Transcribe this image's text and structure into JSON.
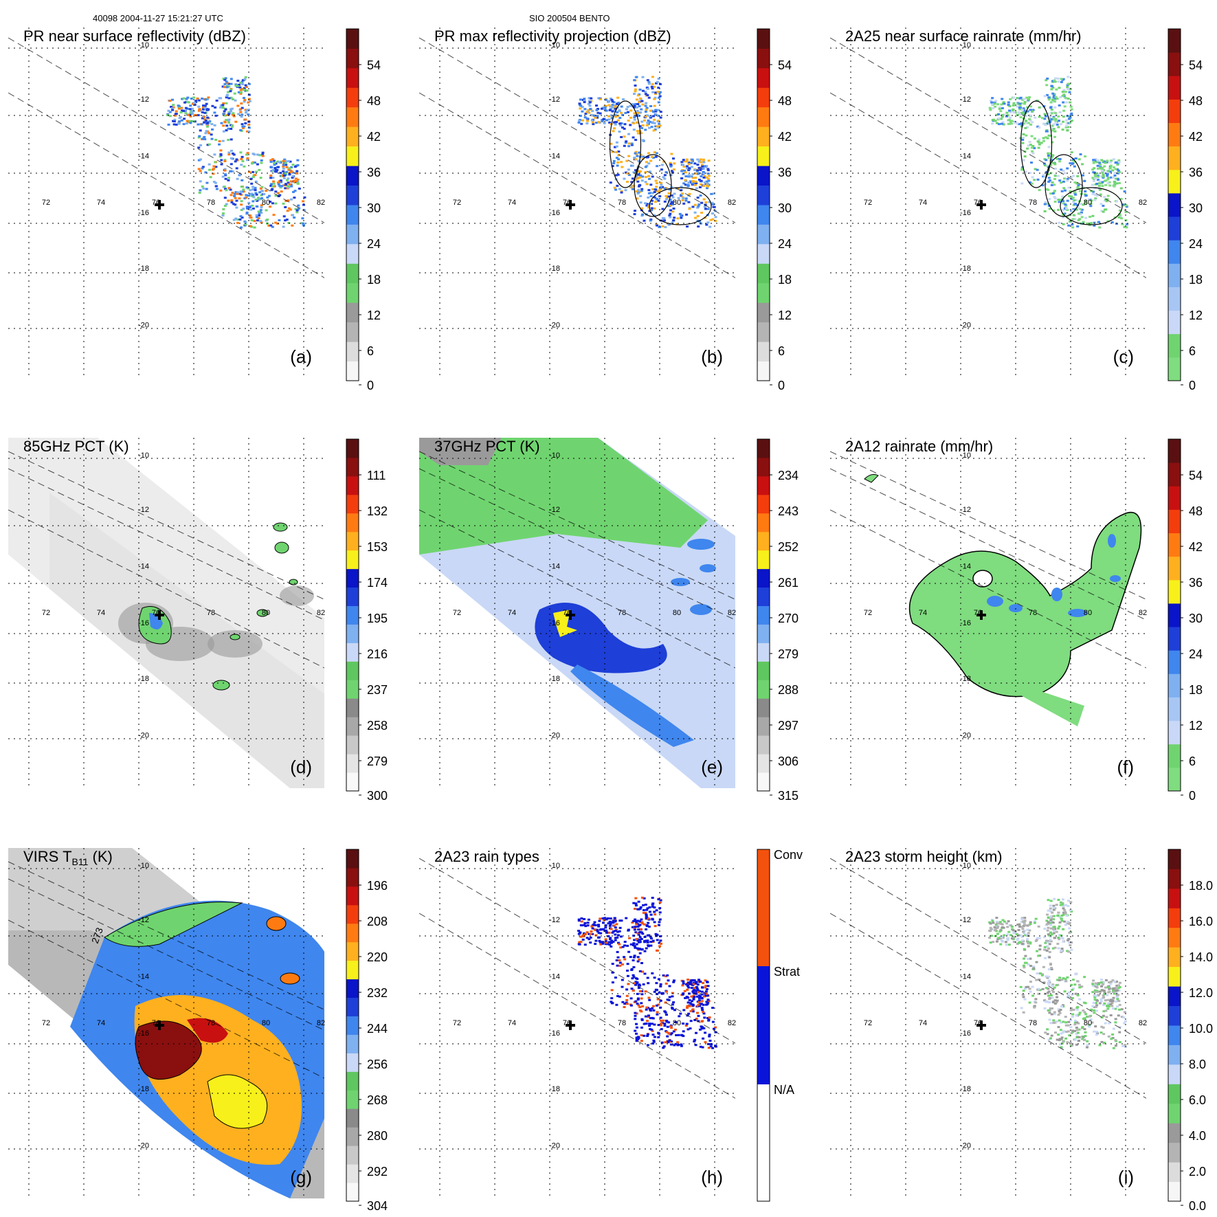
{
  "header": {
    "left": "40098 2004-11-27 15:21:27 UTC",
    "center": "SIO 200504 BENTO"
  },
  "chart_data": {
    "type": "map-grid",
    "lon_ticks": [
      "72",
      "74",
      "76",
      "78",
      "80",
      "82"
    ],
    "lat_ticks": [
      "-10",
      "-12",
      "-14",
      "-16",
      "-18",
      "-20"
    ],
    "center_marker": "cross",
    "panels": [
      {
        "id": "a",
        "title": "PR near surface reflectivity (dBZ)",
        "label": "(a)",
        "type": "reflectivity_swath",
        "colorbar": {
          "ticks": [
            "54",
            "48",
            "42",
            "36",
            "30",
            "24",
            "18",
            "12",
            "6",
            "0"
          ],
          "range": [
            0,
            60
          ],
          "colors": [
            "#f6f6f6",
            "#dcdcdc",
            "#b4b4b4",
            "#9a9a9a",
            "#6fd46f",
            "#5fc75f",
            "#c9d8f6",
            "#7fb0f0",
            "#3f86ee",
            "#1e3fd8",
            "#0a14c8",
            "#f7f01a",
            "#ffb01e",
            "#ff7b12",
            "#f43d0c",
            "#c81010",
            "#8a0f0f",
            "#5a1010"
          ]
        }
      },
      {
        "id": "b",
        "title": "PR max reflectivity projection (dBZ)",
        "label": "(b)",
        "type": "reflectivity_swath_outlined",
        "colorbar": {
          "ticks": [
            "54",
            "48",
            "42",
            "36",
            "30",
            "24",
            "18",
            "12",
            "6",
            "0"
          ],
          "range": [
            0,
            60
          ],
          "colors": [
            "#f6f6f6",
            "#dcdcdc",
            "#b4b4b4",
            "#9a9a9a",
            "#6fd46f",
            "#5fc75f",
            "#c9d8f6",
            "#7fb0f0",
            "#3f86ee",
            "#1e3fd8",
            "#0a14c8",
            "#f7f01a",
            "#ffb01e",
            "#ff7b12",
            "#f43d0c",
            "#c81010",
            "#8a0f0f",
            "#5a1010"
          ]
        }
      },
      {
        "id": "c",
        "title": "2A25 near surface rainrate (mm/hr)",
        "label": "(c)",
        "type": "rainrate_swath",
        "colorbar": {
          "ticks": [
            "54",
            "48",
            "42",
            "36",
            "30",
            "24",
            "18",
            "12",
            "6",
            "0"
          ],
          "range": [
            0,
            60
          ],
          "colors": [
            "#7fdc7f",
            "#6fd46f",
            "#c9d8f6",
            "#a8c6f4",
            "#7fb0f0",
            "#3f86ee",
            "#1e3fd8",
            "#0a14c8",
            "#f7f01a",
            "#ffb01e",
            "#ff7b12",
            "#f43d0c",
            "#c81010",
            "#8a0f0f",
            "#5a1010"
          ]
        }
      },
      {
        "id": "d",
        "title": "85GHz PCT (K)",
        "label": "(d)",
        "type": "tb_gray",
        "colorbar": {
          "ticks": [
            "111",
            "132",
            "153",
            "174",
            "195",
            "216",
            "237",
            "258",
            "279",
            "300"
          ],
          "range": [
            90,
            300
          ],
          "colors": [
            "#f8f8f8",
            "#e4e4e4",
            "#c8c8c8",
            "#a8a8a8",
            "#8a8a8a",
            "#6fd46f",
            "#5fc75f",
            "#c9d8f6",
            "#7fb0f0",
            "#3f86ee",
            "#1e3fd8",
            "#0a14c8",
            "#f7f01a",
            "#ffb01e",
            "#ff7b12",
            "#f43d0c",
            "#c81010",
            "#8a0f0f",
            "#5a1010"
          ]
        }
      },
      {
        "id": "e",
        "title": "37GHz PCT (K)",
        "label": "(e)",
        "type": "tb_color",
        "colorbar": {
          "ticks": [
            "234",
            "243",
            "252",
            "261",
            "270",
            "279",
            "288",
            "297",
            "306",
            "315"
          ],
          "range": [
            225,
            315
          ],
          "colors": [
            "#f8f8f8",
            "#e4e4e4",
            "#c8c8c8",
            "#a8a8a8",
            "#8a8a8a",
            "#6fd46f",
            "#5fc75f",
            "#c9d8f6",
            "#7fb0f0",
            "#3f86ee",
            "#1e3fd8",
            "#0a14c8",
            "#f7f01a",
            "#ffb01e",
            "#ff7b12",
            "#f43d0c",
            "#c81010",
            "#8a0f0f",
            "#5a1010"
          ]
        }
      },
      {
        "id": "f",
        "title": "2A12 rainrate (mm/hr)",
        "label": "(f)",
        "type": "rainrate_area",
        "colorbar": {
          "ticks": [
            "54",
            "48",
            "42",
            "36",
            "30",
            "24",
            "18",
            "12",
            "6",
            "0"
          ],
          "range": [
            0,
            60
          ],
          "colors": [
            "#7fdc7f",
            "#6fd46f",
            "#c9d8f6",
            "#a8c6f4",
            "#7fb0f0",
            "#3f86ee",
            "#1e3fd8",
            "#0a14c8",
            "#f7f01a",
            "#ffb01e",
            "#ff7b12",
            "#f43d0c",
            "#c81010",
            "#8a0f0f",
            "#5a1010"
          ]
        }
      },
      {
        "id": "g",
        "title": "VIRS T",
        "title_sub": "B11",
        "title_tail": " (K)",
        "label": "(g)",
        "type": "ir",
        "annotation": "273",
        "colorbar": {
          "ticks": [
            "196",
            "208",
            "220",
            "232",
            "244",
            "256",
            "268",
            "280",
            "292",
            "304"
          ],
          "range": [
            184,
            304
          ],
          "colors": [
            "#f8f8f8",
            "#e4e4e4",
            "#c8c8c8",
            "#a8a8a8",
            "#8a8a8a",
            "#6fd46f",
            "#5fc75f",
            "#c9d8f6",
            "#7fb0f0",
            "#3f86ee",
            "#1e3fd8",
            "#0a14c8",
            "#f7f01a",
            "#ffb01e",
            "#ff7b12",
            "#f43d0c",
            "#c81010",
            "#8a0f0f",
            "#5a1010"
          ]
        }
      },
      {
        "id": "h",
        "title": "2A23 rain types",
        "label": "(h)",
        "type": "rain_types",
        "categories": [
          "Conv",
          "Strat",
          "N/A"
        ],
        "category_colors": [
          "#f2520e",
          "#0a14d8",
          "#ffffff"
        ]
      },
      {
        "id": "i",
        "title": "2A23 storm height (km)",
        "label": "(i)",
        "type": "storm_height",
        "colorbar": {
          "ticks": [
            "18.0",
            "16.0",
            "14.0",
            "12.0",
            "10.0",
            "8.0",
            "6.0",
            "4.0",
            "2.0",
            "0.0"
          ],
          "range": [
            0,
            20
          ],
          "colors": [
            "#f6f6f6",
            "#dcdcdc",
            "#b4b4b4",
            "#9a9a9a",
            "#6fd46f",
            "#5fc75f",
            "#c9d8f6",
            "#7fb0f0",
            "#3f86ee",
            "#1e3fd8",
            "#0a14c8",
            "#f7f01a",
            "#ffb01e",
            "#ff7b12",
            "#f43d0c",
            "#c81010",
            "#8a0f0f",
            "#5a1010"
          ]
        }
      }
    ]
  }
}
